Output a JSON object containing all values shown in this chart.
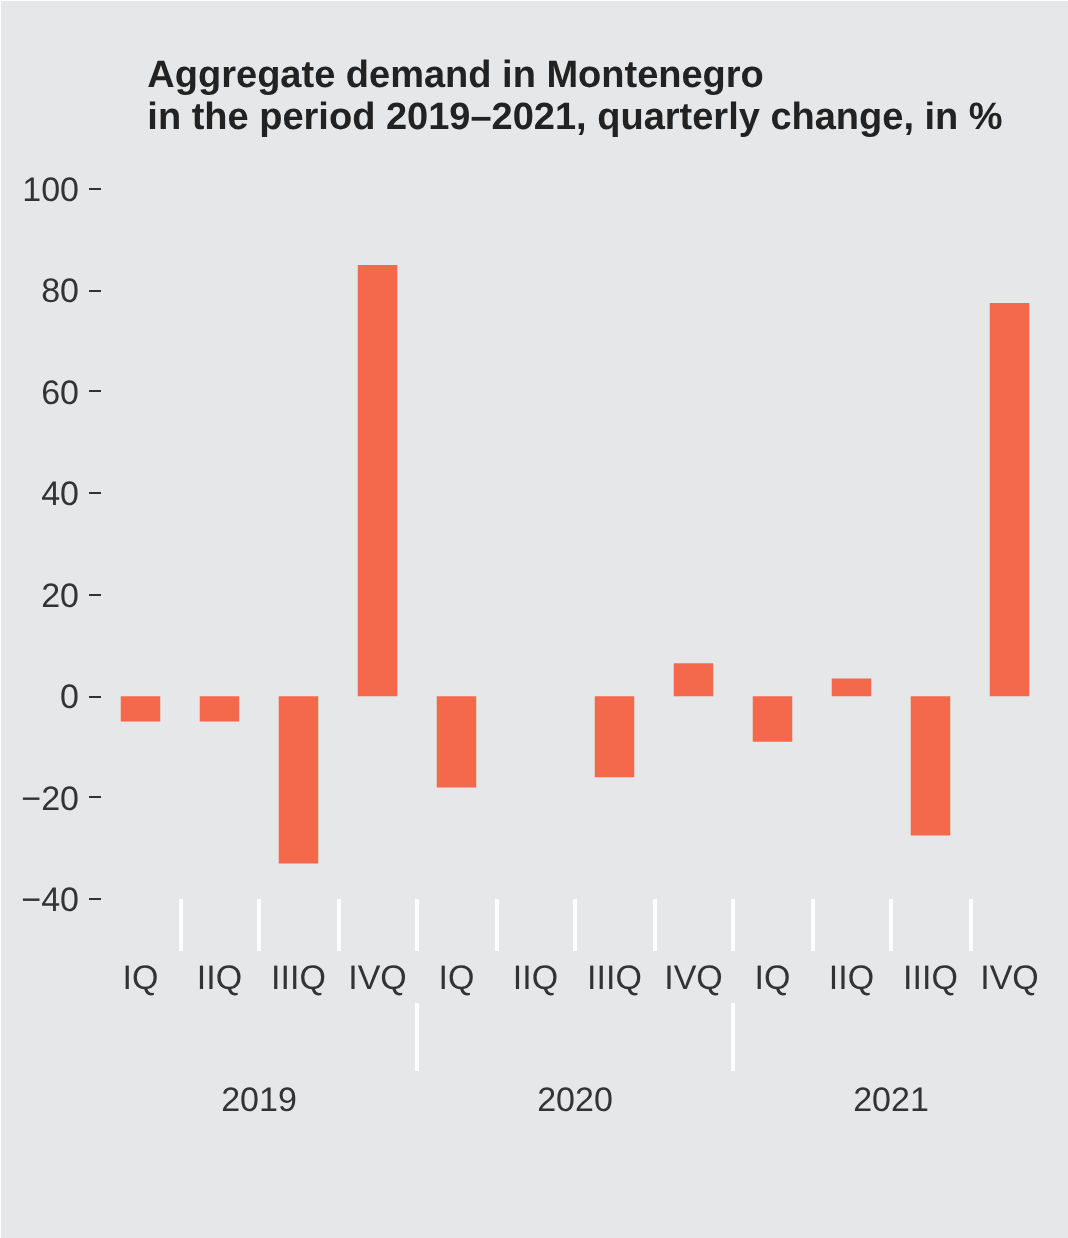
{
  "chart_data": {
    "type": "bar",
    "title": "Aggregate demand in Montenegro\nin the period 2019–2021, quarterly change, in %",
    "categories": [
      "IQ",
      "IIQ",
      "IIIQ",
      "IVQ",
      "IQ",
      "IIQ",
      "IIIQ",
      "IVQ",
      "IQ",
      "IIQ",
      "IIIQ",
      "IVQ"
    ],
    "values": [
      -5,
      -5,
      -33,
      85,
      -18,
      0,
      -16,
      6.5,
      -9,
      3.5,
      -27.5,
      77.5
    ],
    "color": "#f4694b",
    "ylim": [
      -40,
      100
    ],
    "yticks": [
      -40,
      -20,
      0,
      20,
      40,
      60,
      80,
      100
    ],
    "annotations": [
      "2019",
      "2020",
      "2021"
    ],
    "grid": false
  }
}
